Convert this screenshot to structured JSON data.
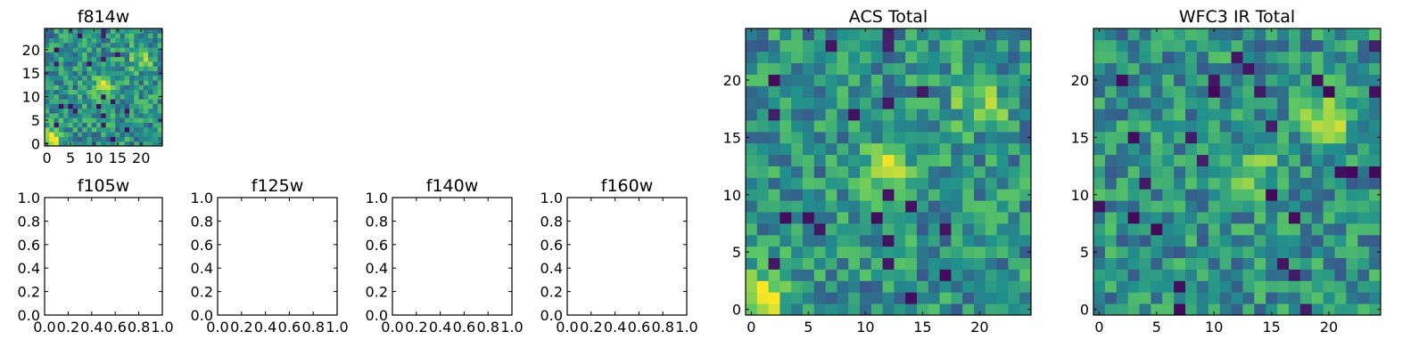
{
  "figure": {
    "colors": {
      "frame": "#000000",
      "background": "#ffffff",
      "colormap": [
        "#440154",
        "#3b528b",
        "#21918c",
        "#5ec962",
        "#fde725"
      ]
    }
  },
  "chart_data": [
    {
      "id": "f814w",
      "type": "heatmap",
      "title": "f814w",
      "xlabel": "",
      "ylabel": "",
      "grid_size": 25,
      "xlim": [
        -0.5,
        24.5
      ],
      "ylim": [
        -0.5,
        24.5
      ],
      "xticks": [
        0,
        5,
        10,
        15,
        20
      ],
      "yticks": [
        0,
        5,
        10,
        15,
        20
      ],
      "xtick_labels": [
        "0",
        "5",
        "10",
        "15",
        "20"
      ],
      "ytick_labels": [
        "0",
        "5",
        "10",
        "15",
        "20"
      ],
      "grid": false,
      "data_description_seed": 11,
      "hotspots": [
        {
          "x": 1,
          "y": 1,
          "value": 1.0
        },
        {
          "x": 12,
          "y": 12,
          "value": 0.85
        },
        {
          "x": 20,
          "y": 18,
          "value": 0.8
        }
      ]
    },
    {
      "id": "acs_total",
      "type": "heatmap",
      "title": "ACS Total",
      "xlabel": "",
      "ylabel": "",
      "grid_size": 25,
      "xlim": [
        -0.5,
        24.5
      ],
      "ylim": [
        -0.5,
        24.5
      ],
      "xticks": [
        0,
        5,
        10,
        15,
        20
      ],
      "yticks": [
        0,
        5,
        10,
        15,
        20
      ],
      "xtick_labels": [
        "0",
        "5",
        "10",
        "15",
        "20"
      ],
      "ytick_labels": [
        "0",
        "5",
        "10",
        "15",
        "20"
      ],
      "grid": false,
      "data_description_seed": 11,
      "hotspots": [
        {
          "x": 1,
          "y": 1,
          "value": 1.0
        },
        {
          "x": 12,
          "y": 12,
          "value": 0.85
        },
        {
          "x": 20,
          "y": 18,
          "value": 0.8
        }
      ]
    },
    {
      "id": "wfc3_ir_total",
      "type": "heatmap",
      "title": "WFC3 IR Total",
      "xlabel": "",
      "ylabel": "",
      "grid_size": 25,
      "xlim": [
        -0.5,
        24.5
      ],
      "ylim": [
        -0.5,
        24.5
      ],
      "xticks": [
        0,
        5,
        10,
        15,
        20
      ],
      "yticks": [
        0,
        5,
        10,
        15,
        20
      ],
      "xtick_labels": [
        "0",
        "5",
        "10",
        "15",
        "20"
      ],
      "ytick_labels": [
        "0",
        "5",
        "10",
        "15",
        "20"
      ],
      "grid": false,
      "data_description_seed": 29,
      "hotspots": [
        {
          "x": 20,
          "y": 17,
          "value": 0.95
        },
        {
          "x": 13,
          "y": 12,
          "value": 0.75
        }
      ]
    },
    {
      "id": "f105w",
      "type": "scatter",
      "title": "f105w",
      "xlabel": "",
      "ylabel": "",
      "xlim": [
        0,
        1
      ],
      "ylim": [
        0,
        1
      ],
      "xticks": [
        0,
        0.2,
        0.4,
        0.6,
        0.8,
        1
      ],
      "yticks": [
        0,
        0.2,
        0.4,
        0.6,
        0.8,
        1
      ],
      "xtick_labels": [
        "0.0",
        "0.2",
        "0.4",
        "0.6",
        "0.8",
        "1.0"
      ],
      "ytick_labels": [
        "0.0",
        "0.2",
        "0.4",
        "0.6",
        "0.8",
        "1.0"
      ],
      "series": []
    },
    {
      "id": "f125w",
      "type": "scatter",
      "title": "f125w",
      "xlabel": "",
      "ylabel": "",
      "xlim": [
        0,
        1
      ],
      "ylim": [
        0,
        1
      ],
      "xticks": [
        0,
        0.2,
        0.4,
        0.6,
        0.8,
        1
      ],
      "yticks": [
        0,
        0.2,
        0.4,
        0.6,
        0.8,
        1
      ],
      "xtick_labels": [
        "0.0",
        "0.2",
        "0.4",
        "0.6",
        "0.8",
        "1.0"
      ],
      "ytick_labels": [
        "0.0",
        "0.2",
        "0.4",
        "0.6",
        "0.8",
        "1.0"
      ],
      "series": []
    },
    {
      "id": "f140w",
      "type": "scatter",
      "title": "f140w",
      "xlabel": "",
      "ylabel": "",
      "xlim": [
        0,
        1
      ],
      "ylim": [
        0,
        1
      ],
      "xticks": [
        0,
        0.2,
        0.4,
        0.6,
        0.8,
        1
      ],
      "yticks": [
        0,
        0.2,
        0.4,
        0.6,
        0.8,
        1
      ],
      "xtick_labels": [
        "0.0",
        "0.2",
        "0.4",
        "0.6",
        "0.8",
        "1.0"
      ],
      "ytick_labels": [
        "0.0",
        "0.2",
        "0.4",
        "0.6",
        "0.8",
        "1.0"
      ],
      "series": []
    },
    {
      "id": "f160w",
      "type": "scatter",
      "title": "f160w",
      "xlabel": "",
      "ylabel": "",
      "xlim": [
        0,
        1
      ],
      "ylim": [
        0,
        1
      ],
      "xticks": [
        0,
        0.2,
        0.4,
        0.6,
        0.8,
        1
      ],
      "yticks": [
        0,
        0.2,
        0.4,
        0.6,
        0.8,
        1
      ],
      "xtick_labels": [
        "0.0",
        "0.2",
        "0.4",
        "0.6",
        "0.8",
        "1.0"
      ],
      "ytick_labels": [
        "0.0",
        "0.2",
        "0.4",
        "0.6",
        "0.8",
        "1.0"
      ],
      "series": []
    }
  ]
}
